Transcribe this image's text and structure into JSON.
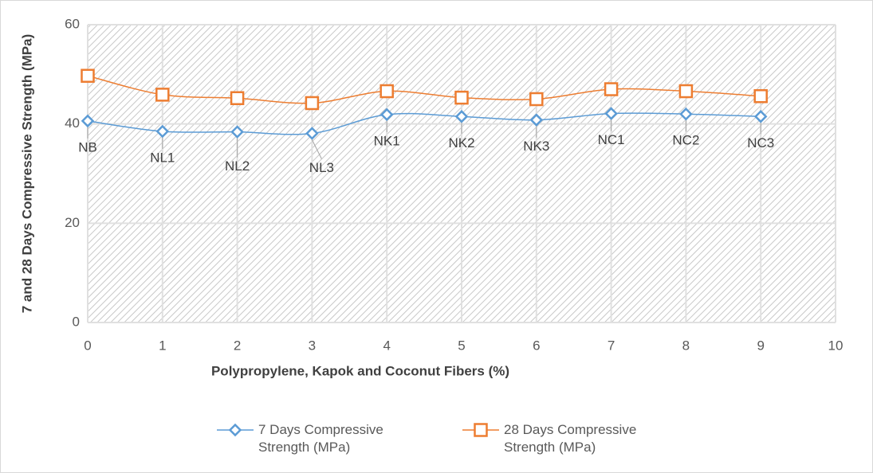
{
  "chart_data": {
    "type": "line",
    "xlabel": "Polypropylene, Kapok and Coconut Fibers (%)",
    "ylabel": "7 and 28 Days Compressive  Strength (MPa)",
    "x": [
      0,
      1,
      2,
      3,
      4,
      5,
      6,
      7,
      8,
      9
    ],
    "point_labels": [
      "NB",
      "NL1",
      "NL2",
      "NL3",
      "NK1",
      "NK2",
      "NK3",
      "NC1",
      "NC2",
      "NC3"
    ],
    "series": [
      {
        "name": "7 Days Compressive Strength (MPa)",
        "color": "#5b9bd5",
        "marker": "diamond",
        "values": [
          40.6,
          38.5,
          38.4,
          38.1,
          41.9,
          41.5,
          40.8,
          42.1,
          42.0,
          41.5
        ]
      },
      {
        "name": "28 Days Compressive Strength (MPa)",
        "color": "#ed7d31",
        "marker": "square",
        "values": [
          49.7,
          45.9,
          45.2,
          44.2,
          46.6,
          45.3,
          45.0,
          47.0,
          46.6,
          45.6
        ]
      }
    ],
    "xlim": [
      0,
      10
    ],
    "xticks": [
      0,
      1,
      2,
      3,
      4,
      5,
      6,
      7,
      8,
      9,
      10
    ],
    "ylim": [
      0,
      60
    ],
    "yticks": [
      0,
      20,
      40,
      60
    ],
    "grid": true,
    "legend": "bottom"
  }
}
